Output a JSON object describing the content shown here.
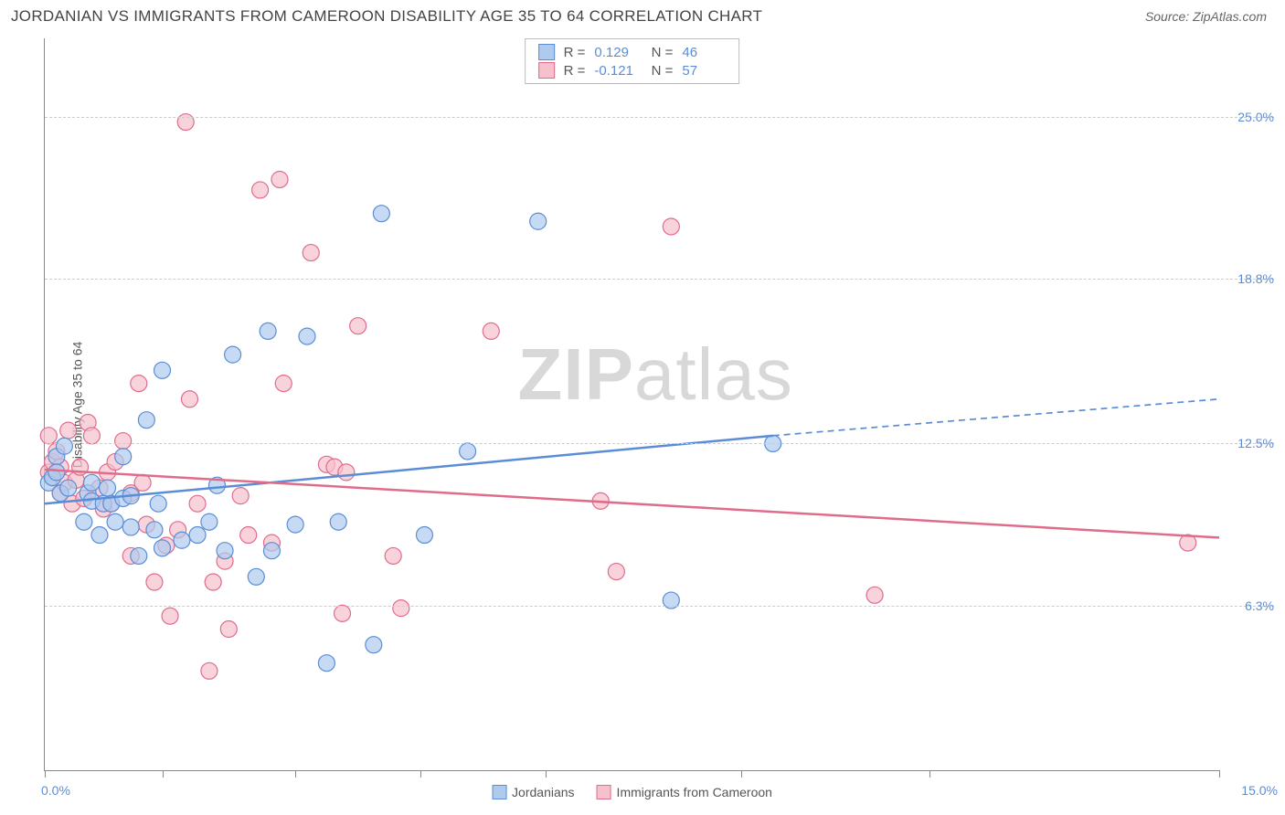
{
  "header": {
    "title": "JORDANIAN VS IMMIGRANTS FROM CAMEROON DISABILITY AGE 35 TO 64 CORRELATION CHART",
    "source": "Source: ZipAtlas.com"
  },
  "watermark": {
    "bold": "ZIP",
    "light": "atlas"
  },
  "chart": {
    "type": "scatter",
    "y_label": "Disability Age 35 to 64",
    "xlim": [
      0,
      15
    ],
    "ylim": [
      0,
      28
    ],
    "x_ticks": [
      0,
      1.5,
      3.2,
      4.8,
      6.4,
      8.9,
      11.3,
      15
    ],
    "x_tick_labels": {
      "0": "0.0%",
      "15": "15.0%"
    },
    "y_gridlines": [
      6.3,
      12.5,
      18.8,
      25.0
    ],
    "y_tick_labels": [
      "6.3%",
      "12.5%",
      "18.8%",
      "25.0%"
    ],
    "background_color": "#ffffff",
    "grid_color": "#cccccc",
    "series": [
      {
        "name": "Jordanians",
        "short": "jordanians",
        "fill": "#aecbee",
        "stroke": "#5b8dd6",
        "marker_radius": 9,
        "fill_opacity": 0.7,
        "trend_line": {
          "x1": 0,
          "y1": 10.2,
          "x2": 9.3,
          "y2": 12.8,
          "dash_x2": 15,
          "dash_y2": 14.2,
          "width": 2.5
        },
        "R": "0.129",
        "N": "46",
        "points": [
          [
            0.05,
            11.0
          ],
          [
            0.1,
            11.2
          ],
          [
            0.15,
            12.0
          ],
          [
            0.15,
            11.4
          ],
          [
            0.2,
            10.6
          ],
          [
            0.25,
            12.4
          ],
          [
            0.3,
            10.8
          ],
          [
            0.5,
            9.5
          ],
          [
            0.55,
            10.6
          ],
          [
            0.6,
            11.0
          ],
          [
            0.6,
            10.3
          ],
          [
            0.7,
            9.0
          ],
          [
            0.75,
            10.2
          ],
          [
            0.8,
            10.8
          ],
          [
            0.85,
            10.2
          ],
          [
            0.9,
            9.5
          ],
          [
            1.0,
            12.0
          ],
          [
            1.0,
            10.4
          ],
          [
            1.1,
            9.3
          ],
          [
            1.1,
            10.5
          ],
          [
            1.2,
            8.2
          ],
          [
            1.3,
            13.4
          ],
          [
            1.4,
            9.2
          ],
          [
            1.45,
            10.2
          ],
          [
            1.5,
            15.3
          ],
          [
            1.5,
            8.5
          ],
          [
            1.75,
            8.8
          ],
          [
            1.95,
            9.0
          ],
          [
            2.1,
            9.5
          ],
          [
            2.2,
            10.9
          ],
          [
            2.3,
            8.4
          ],
          [
            2.4,
            15.9
          ],
          [
            2.7,
            7.4
          ],
          [
            2.85,
            16.8
          ],
          [
            2.9,
            8.4
          ],
          [
            3.2,
            9.4
          ],
          [
            3.35,
            16.6
          ],
          [
            3.6,
            4.1
          ],
          [
            3.75,
            9.5
          ],
          [
            4.2,
            4.8
          ],
          [
            4.3,
            21.3
          ],
          [
            4.85,
            9.0
          ],
          [
            5.4,
            12.2
          ],
          [
            6.3,
            21.0
          ],
          [
            8.0,
            6.5
          ],
          [
            9.3,
            12.5
          ]
        ]
      },
      {
        "name": "Immigrants from Cameroon",
        "short": "cameroon",
        "fill": "#f6c0cd",
        "stroke": "#e06c8c",
        "marker_radius": 9,
        "fill_opacity": 0.7,
        "trend_line": {
          "x1": 0,
          "y1": 11.5,
          "x2": 15,
          "y2": 8.9,
          "width": 2.5
        },
        "R": "-0.121",
        "N": "57",
        "points": [
          [
            0.05,
            11.4
          ],
          [
            0.05,
            12.8
          ],
          [
            0.1,
            11.8
          ],
          [
            0.1,
            11.2
          ],
          [
            0.15,
            12.2
          ],
          [
            0.2,
            11.6
          ],
          [
            0.2,
            10.6
          ],
          [
            0.25,
            11.0
          ],
          [
            0.3,
            13.0
          ],
          [
            0.35,
            10.2
          ],
          [
            0.4,
            11.1
          ],
          [
            0.45,
            11.6
          ],
          [
            0.5,
            10.4
          ],
          [
            0.55,
            13.3
          ],
          [
            0.6,
            12.8
          ],
          [
            0.7,
            10.8
          ],
          [
            0.75,
            10.0
          ],
          [
            0.8,
            11.4
          ],
          [
            0.85,
            10.2
          ],
          [
            0.9,
            11.8
          ],
          [
            1.0,
            12.6
          ],
          [
            1.1,
            8.2
          ],
          [
            1.1,
            10.6
          ],
          [
            1.2,
            14.8
          ],
          [
            1.25,
            11.0
          ],
          [
            1.3,
            9.4
          ],
          [
            1.4,
            7.2
          ],
          [
            1.55,
            8.6
          ],
          [
            1.6,
            5.9
          ],
          [
            1.7,
            9.2
          ],
          [
            1.8,
            24.8
          ],
          [
            1.95,
            10.2
          ],
          [
            1.85,
            14.2
          ],
          [
            2.1,
            3.8
          ],
          [
            2.15,
            7.2
          ],
          [
            2.3,
            8.0
          ],
          [
            2.35,
            5.4
          ],
          [
            2.5,
            10.5
          ],
          [
            2.6,
            9.0
          ],
          [
            2.75,
            22.2
          ],
          [
            2.9,
            8.7
          ],
          [
            3.0,
            22.6
          ],
          [
            3.05,
            14.8
          ],
          [
            3.4,
            19.8
          ],
          [
            3.6,
            11.7
          ],
          [
            3.7,
            11.6
          ],
          [
            3.8,
            6.0
          ],
          [
            3.85,
            11.4
          ],
          [
            4.0,
            17.0
          ],
          [
            4.45,
            8.2
          ],
          [
            4.55,
            6.2
          ],
          [
            5.7,
            16.8
          ],
          [
            7.1,
            10.3
          ],
          [
            7.3,
            7.6
          ],
          [
            8.0,
            20.8
          ],
          [
            10.6,
            6.7
          ],
          [
            14.6,
            8.7
          ]
        ]
      }
    ],
    "legend": {
      "items": [
        {
          "label": "Jordanians",
          "fill": "#aecbee",
          "stroke": "#5b8dd6"
        },
        {
          "label": "Immigrants from Cameroon",
          "fill": "#f6c0cd",
          "stroke": "#e06c8c"
        }
      ]
    }
  }
}
